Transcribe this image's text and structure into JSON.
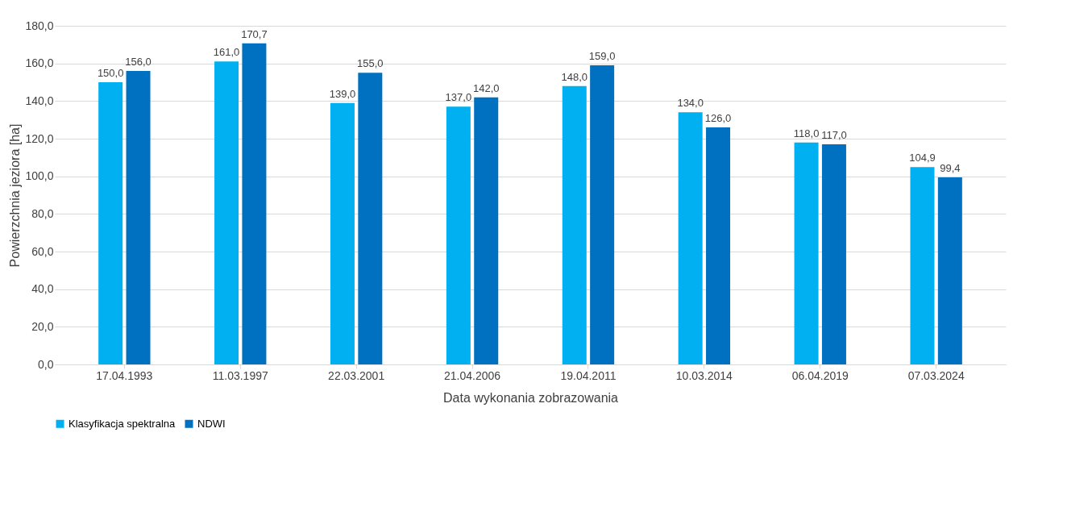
{
  "chart_data": {
    "type": "bar",
    "xlabel": "Data wykonania zobrazowania",
    "ylabel": "Powierzchnia jeziora [ha]",
    "categories": [
      "17.04.1993",
      "11.03.1997",
      "22.03.2001",
      "21.04.2006",
      "19.04.2011",
      "10.03.2014",
      "06.04.2019",
      "07.03.2024"
    ],
    "series": [
      {
        "name": "Klasyfikacja spektralna",
        "color": "#00b0f0",
        "values": [
          150.0,
          161.0,
          139.0,
          137.0,
          148.0,
          134.0,
          118.0,
          104.9
        ],
        "value_labels": [
          "150,0",
          "161,0",
          "139,0",
          "137,0",
          "148,0",
          "134,0",
          "118,0",
          "104,9"
        ]
      },
      {
        "name": "NDWI",
        "color": "#0070c0",
        "values": [
          156.0,
          170.7,
          155.0,
          142.0,
          159.0,
          126.0,
          117.0,
          99.4
        ],
        "value_labels": [
          "156,0",
          "170,7",
          "155,0",
          "142,0",
          "159,0",
          "126,0",
          "117,0",
          "99,4"
        ]
      }
    ],
    "ylim": [
      0,
      180
    ],
    "yticks": [
      {
        "value": 0,
        "label": "0,0"
      },
      {
        "value": 20,
        "label": "20,0"
      },
      {
        "value": 40,
        "label": "40,0"
      },
      {
        "value": 60,
        "label": "60,0"
      },
      {
        "value": 80,
        "label": "80,0"
      },
      {
        "value": 100,
        "label": "100,0"
      },
      {
        "value": 120,
        "label": "120,0"
      },
      {
        "value": 140,
        "label": "140,0"
      },
      {
        "value": 160,
        "label": "160,0"
      },
      {
        "value": 180,
        "label": "180,0"
      }
    ],
    "grid": "y",
    "legend": "bottom"
  }
}
